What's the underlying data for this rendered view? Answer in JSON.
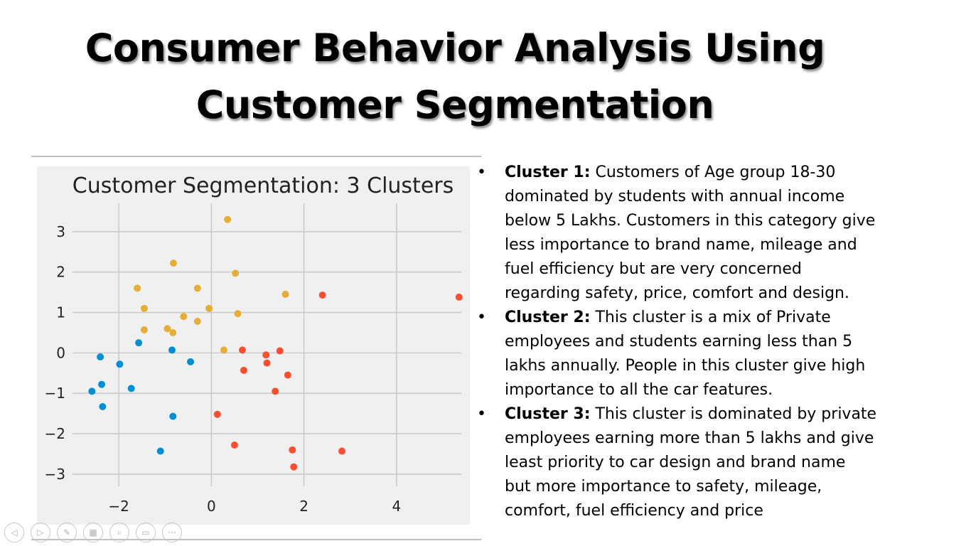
{
  "slide": {
    "title_lines": [
      "Consumer Behavior Analysis Using",
      "Customer Segmentation"
    ]
  },
  "bullets": [
    {
      "heading": "Cluster 1:",
      "lines": [
        " Customers of Age group 18-30",
        "dominated by students  with annual income",
        "below 5 Lakhs. Customers in this category give",
        "less importance to brand name, mileage and",
        "fuel efficiency but are very concerned",
        "regarding safety, price, comfort and design."
      ]
    },
    {
      "heading": "Cluster 2:",
      "lines": [
        " This cluster is a mix of Private",
        "employees and students earning less than 5",
        "lakhs annually. People in this cluster give high",
        "importance to all the car features."
      ]
    },
    {
      "heading": "Cluster 3:",
      "lines": [
        " This cluster is dominated by private",
        "employees earning more than 5 lakhs and give",
        "least priority to car design and brand name",
        "but more importance to safety, mileage,",
        "comfort, fuel efficiency and price"
      ]
    }
  ],
  "bullet_glyph": "•",
  "controls": [
    {
      "name": "previous-icon",
      "glyph": "◁"
    },
    {
      "name": "next-icon",
      "glyph": "▷"
    },
    {
      "name": "pen-icon",
      "glyph": "✎"
    },
    {
      "name": "slides-grid-icon",
      "glyph": "▦"
    },
    {
      "name": "zoom-icon",
      "glyph": "⌕"
    },
    {
      "name": "subtitles-icon",
      "glyph": "▭"
    },
    {
      "name": "more-options-icon",
      "glyph": "···"
    }
  ],
  "chart_data": {
    "type": "scatter",
    "title": "Customer Segmentation: 3 Clusters",
    "xlabel": "",
    "ylabel": "",
    "xlim": [
      -3,
      5.4
    ],
    "ylim": [
      -3.3,
      3.7
    ],
    "xticks": [
      -2,
      0,
      2,
      4
    ],
    "xtick_labels": [
      "−2",
      "0",
      "2",
      "4"
    ],
    "yticks": [
      3,
      2,
      1,
      0,
      -1,
      -2,
      -3
    ],
    "ytick_labels": [
      "3",
      "2",
      "1",
      "0",
      "−1",
      "−2",
      "−3"
    ],
    "grid": true,
    "background": "#f0f0f0",
    "series": [
      {
        "color": "#e5ae38",
        "points": [
          [
            0.35,
            3.3
          ],
          [
            -0.82,
            2.22
          ],
          [
            0.52,
            1.97
          ],
          [
            -1.6,
            1.6
          ],
          [
            -0.3,
            1.6
          ],
          [
            1.6,
            1.45
          ],
          [
            -1.45,
            1.1
          ],
          [
            -0.05,
            1.1
          ],
          [
            -0.6,
            0.9
          ],
          [
            0.57,
            0.97
          ],
          [
            -0.3,
            0.78
          ],
          [
            -1.45,
            0.57
          ],
          [
            -0.95,
            0.6
          ],
          [
            -0.83,
            0.5
          ],
          [
            0.27,
            0.07
          ]
        ]
      },
      {
        "color": "#008fd5",
        "points": [
          [
            -1.57,
            0.25
          ],
          [
            -0.85,
            0.07
          ],
          [
            -2.4,
            -0.1
          ],
          [
            -1.98,
            -0.28
          ],
          [
            -0.45,
            -0.22
          ],
          [
            -2.37,
            -0.78
          ],
          [
            -1.73,
            -0.88
          ],
          [
            -2.58,
            -0.95
          ],
          [
            -2.35,
            -1.33
          ],
          [
            -0.83,
            -1.57
          ],
          [
            -1.1,
            -2.43
          ]
        ]
      },
      {
        "color": "#fc4f30",
        "points": [
          [
            2.4,
            1.43
          ],
          [
            5.35,
            1.38
          ],
          [
            0.67,
            0.07
          ],
          [
            1.48,
            0.05
          ],
          [
            1.18,
            -0.05
          ],
          [
            1.2,
            -0.25
          ],
          [
            0.7,
            -0.43
          ],
          [
            1.65,
            -0.55
          ],
          [
            1.38,
            -0.95
          ],
          [
            0.13,
            -1.52
          ],
          [
            0.5,
            -2.28
          ],
          [
            1.75,
            -2.4
          ],
          [
            2.82,
            -2.43
          ],
          [
            1.78,
            -2.82
          ]
        ]
      }
    ]
  }
}
